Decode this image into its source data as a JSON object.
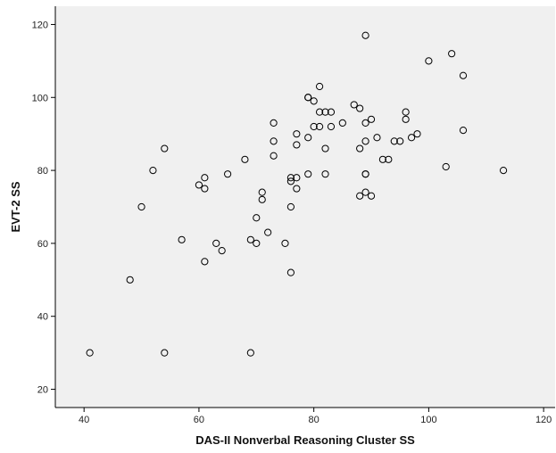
{
  "chart_data": {
    "type": "scatter",
    "title": "",
    "xlabel": "DAS-II Nonverbal Reasoning Cluster SS",
    "ylabel": "EVT-2 SS",
    "xlim": [
      35,
      122
    ],
    "ylim": [
      15,
      125
    ],
    "xticks": [
      40,
      60,
      80,
      100,
      120
    ],
    "yticks": [
      20,
      40,
      60,
      80,
      100,
      120
    ],
    "grid": false,
    "colors": {
      "plot_bg": "#f0f0f0",
      "marker_stroke": "#000000",
      "axis": "#000000"
    },
    "series": [
      {
        "points": [
          [
            41,
            30
          ],
          [
            48,
            50
          ],
          [
            50,
            70
          ],
          [
            52,
            80
          ],
          [
            54,
            86
          ],
          [
            54,
            30
          ],
          [
            57,
            61
          ],
          [
            60,
            76
          ],
          [
            61,
            78
          ],
          [
            61,
            75
          ],
          [
            61,
            55
          ],
          [
            63,
            60
          ],
          [
            64,
            58
          ],
          [
            65,
            79
          ],
          [
            68,
            83
          ],
          [
            69,
            61
          ],
          [
            69,
            30
          ],
          [
            70,
            67
          ],
          [
            70,
            60
          ],
          [
            71,
            74
          ],
          [
            71,
            72
          ],
          [
            72,
            63
          ],
          [
            73,
            93
          ],
          [
            73,
            88
          ],
          [
            73,
            84
          ],
          [
            75,
            60
          ],
          [
            76,
            78
          ],
          [
            76,
            77
          ],
          [
            76,
            70
          ],
          [
            76,
            52
          ],
          [
            77,
            90
          ],
          [
            77,
            87
          ],
          [
            77,
            78
          ],
          [
            77,
            75
          ],
          [
            79,
            100
          ],
          [
            79,
            100
          ],
          [
            79,
            89
          ],
          [
            79,
            79
          ],
          [
            80,
            99
          ],
          [
            80,
            92
          ],
          [
            81,
            103
          ],
          [
            81,
            96
          ],
          [
            81,
            92
          ],
          [
            82,
            96
          ],
          [
            82,
            86
          ],
          [
            82,
            79
          ],
          [
            83,
            96
          ],
          [
            83,
            92
          ],
          [
            85,
            93
          ],
          [
            87,
            98
          ],
          [
            88,
            97
          ],
          [
            88,
            86
          ],
          [
            88,
            73
          ],
          [
            89,
            117
          ],
          [
            89,
            93
          ],
          [
            89,
            88
          ],
          [
            89,
            79
          ],
          [
            89,
            79
          ],
          [
            89,
            74
          ],
          [
            90,
            94
          ],
          [
            90,
            73
          ],
          [
            91,
            89
          ],
          [
            92,
            83
          ],
          [
            93,
            83
          ],
          [
            94,
            88
          ],
          [
            95,
            88
          ],
          [
            96,
            96
          ],
          [
            96,
            94
          ],
          [
            97,
            89
          ],
          [
            98,
            90
          ],
          [
            100,
            110
          ],
          [
            103,
            81
          ],
          [
            104,
            112
          ],
          [
            106,
            106
          ],
          [
            106,
            91
          ],
          [
            113,
            80
          ]
        ]
      }
    ]
  }
}
